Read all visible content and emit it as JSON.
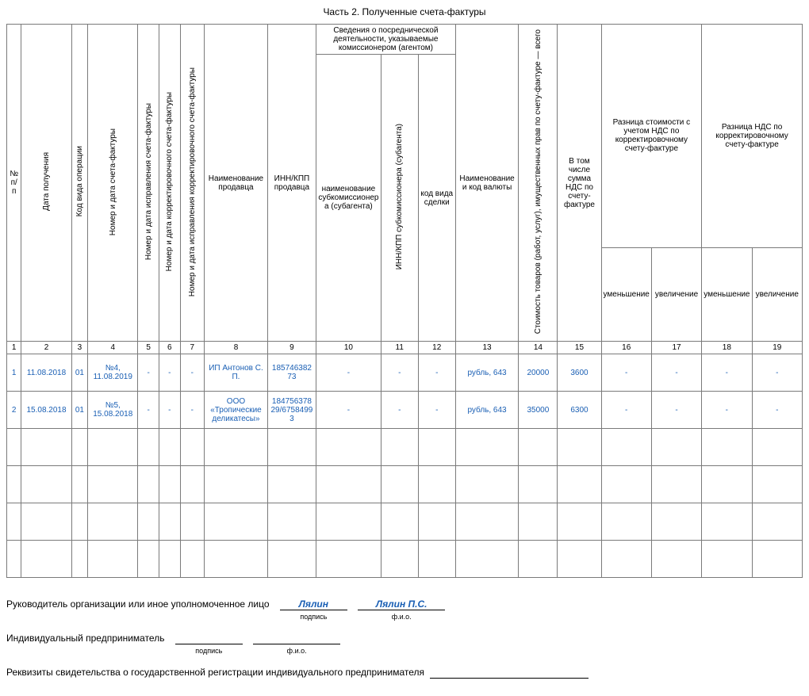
{
  "title": "Часть 2. Полученные счета-фактуры",
  "headers": {
    "c1": "№ п/п",
    "c2": "Дата получения",
    "c3": "Код вида операции",
    "c4": "Номер и дата счета-фактуры",
    "c5": "Номер и дата исправления счета-фактуры",
    "c6": "Номер и дата корректировочного счета-фактуры",
    "c7": "Номер и дата исправления корректировочного счета-фактуры",
    "c8": "Наименование продавца",
    "c9": "ИНН/КПП продавца",
    "c10g": "Сведения о посреднической деятельности, указываемые комиссионером (агентом)",
    "c10": "наименование субкомиссионера (субагента)",
    "c11": "ИНН/КПП субкомиссионера (субагента)",
    "c12": "код вида сделки",
    "c13": "Наименование и код валюты",
    "c14": "Стоимость товаров (работ, услуг), имущественных прав по счету-фактуре — всего",
    "c15": "В том числе сумма НДС по счету-фактуре",
    "c16g": "Разница стоимости с учетом НДС по корректировочному счету-фактуре",
    "c18g": "Разница НДС по корректировочному счету-фактуре",
    "dec": "уменьшение",
    "inc": "увеличение"
  },
  "colnums": [
    "1",
    "2",
    "3",
    "4",
    "5",
    "6",
    "7",
    "8",
    "9",
    "10",
    "11",
    "12",
    "13",
    "14",
    "15",
    "16",
    "17",
    "18",
    "19"
  ],
  "rows": [
    {
      "n": "1",
      "date": "11.08.2018",
      "op": "01",
      "inv": "№4, 11.08.2019",
      "c5": "-",
      "c6": "-",
      "c7": "-",
      "seller": "ИП Антонов С. П.",
      "inn": "185746382 73",
      "c10": "-",
      "c11": "-",
      "c12": "-",
      "currency": "рубль, 643",
      "cost": "20000",
      "vat": "3600",
      "c16": "-",
      "c17": "-",
      "c18": "-",
      "c19": "-"
    },
    {
      "n": "2",
      "date": "15.08.2018",
      "op": "01",
      "inv": "№5, 15.08.2018",
      "c5": "-",
      "c6": "-",
      "c7": "-",
      "seller": "ООО «Тропические деликатесы»",
      "inn": "184756378 29/67584993",
      "c10": "-",
      "c11": "-",
      "c12": "-",
      "currency": "рубль, 643",
      "cost": "35000",
      "vat": "6300",
      "c16": "-",
      "c17": "-",
      "c18": "-",
      "c19": "-"
    }
  ],
  "sig": {
    "l1": "Руководитель организации или иное уполномоченное лицо",
    "l2": "Индивидуальный предприниматель",
    "l3": "Реквизиты свидетельства о государственной регистрации индивидуального предпринимателя",
    "sign": "Лялин",
    "name": "Лялин П.С.",
    "cap_sign": "подпись",
    "cap_name": "ф.и.о."
  },
  "colors": {
    "link": "#1a5fb4",
    "border": "#7a7a7a"
  }
}
